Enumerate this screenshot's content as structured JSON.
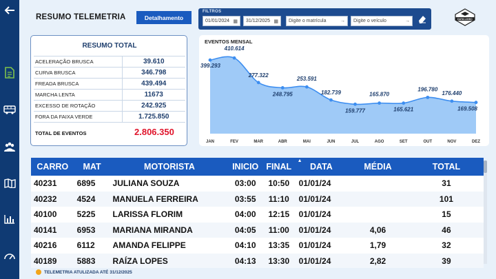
{
  "sidebar": {
    "items": [
      {
        "icon": "back-arrow-icon"
      },
      {
        "icon": "document-icon",
        "active": true
      },
      {
        "icon": "bus-icon"
      },
      {
        "icon": "users-icon"
      },
      {
        "icon": "map-icon"
      },
      {
        "icon": "bar-chart-icon"
      },
      {
        "icon": "speedometer-icon"
      }
    ]
  },
  "header": {
    "title": "RESUMO TELEMETRIA",
    "detail_button": "Detalhamento",
    "filters": {
      "label": "FILTROS",
      "date_start": "01/01/2024",
      "date_end": "31/12/2025",
      "matricula_placeholder": "Digite o matrícula",
      "veiculo_placeholder": "Digite o veículo"
    },
    "logo_text": "DATA LOGIC"
  },
  "summary": {
    "title": "RESUMO TOTAL",
    "rows": [
      {
        "label": "Aceleração Brusca",
        "value": "39.610"
      },
      {
        "label": "Curva Brusca",
        "value": "346.798"
      },
      {
        "label": "Freada Brusca",
        "value": "439.494"
      },
      {
        "label": "Marcha Lenta",
        "value": "11673"
      },
      {
        "label": "Excesso de rotação",
        "value": "242.925"
      },
      {
        "label": "Fora da faixa verde",
        "value": "1.725.850"
      }
    ],
    "total_label": "TOTAL DE EVENTOS",
    "total_value": "2.806.350",
    "total_color": "#e0142b"
  },
  "chart_data": {
    "type": "area",
    "title": "EVENTOS MENSAL",
    "categories": [
      "JAN",
      "FEV",
      "MAR",
      "ABR",
      "MAI",
      "JUN",
      "JUL",
      "AGO",
      "SET",
      "OUT",
      "NOV",
      "DEZ"
    ],
    "values": [
      399293,
      410614,
      277322,
      248795,
      253591,
      182739,
      159777,
      165870,
      165621,
      196780,
      176440,
      169508
    ],
    "labels": [
      "399.293",
      "410.614",
      "277.322",
      "248.795",
      "253.591",
      "182.739",
      "159.777",
      "165.870",
      "165.621",
      "196.780",
      "176.440",
      "169.508"
    ],
    "ylim": [
      0,
      430000
    ],
    "color": "#3d8ef0",
    "fill": "#9fcaf7",
    "grid": false
  },
  "table": {
    "columns": [
      "CARRO",
      "MAT",
      "MOTORISTA",
      "INICIO",
      "FINAL",
      "DATA",
      "MÉDIA",
      "TOTAL"
    ],
    "sorted_column": "DATA",
    "rows": [
      [
        "40231",
        "6895",
        "JULIANA SOUZA",
        "03:00",
        "10:50",
        "01/01/24",
        "",
        "31"
      ],
      [
        "40232",
        "4524",
        "MANUELA FERREIRA",
        "03:55",
        "11:10",
        "01/01/24",
        "",
        "101"
      ],
      [
        "40100",
        "5225",
        "LARISSA FLORIM",
        "04:00",
        "12:15",
        "01/01/24",
        "",
        "15"
      ],
      [
        "40141",
        "6953",
        "MARIANA MIRANDA",
        "04:05",
        "11:00",
        "01/01/24",
        "4,06",
        "46"
      ],
      [
        "40216",
        "6112",
        "AMANDA FELIPPE",
        "04:10",
        "13:35",
        "01/01/24",
        "1,79",
        "32"
      ],
      [
        "40189",
        "5883",
        "RAÍZA LOPES",
        "04:13",
        "13:30",
        "01/01/24",
        "2,82",
        "39"
      ]
    ]
  },
  "footer": {
    "text": "TELEMETRIA ATULIZADA ATÉ 31/12/2025"
  }
}
